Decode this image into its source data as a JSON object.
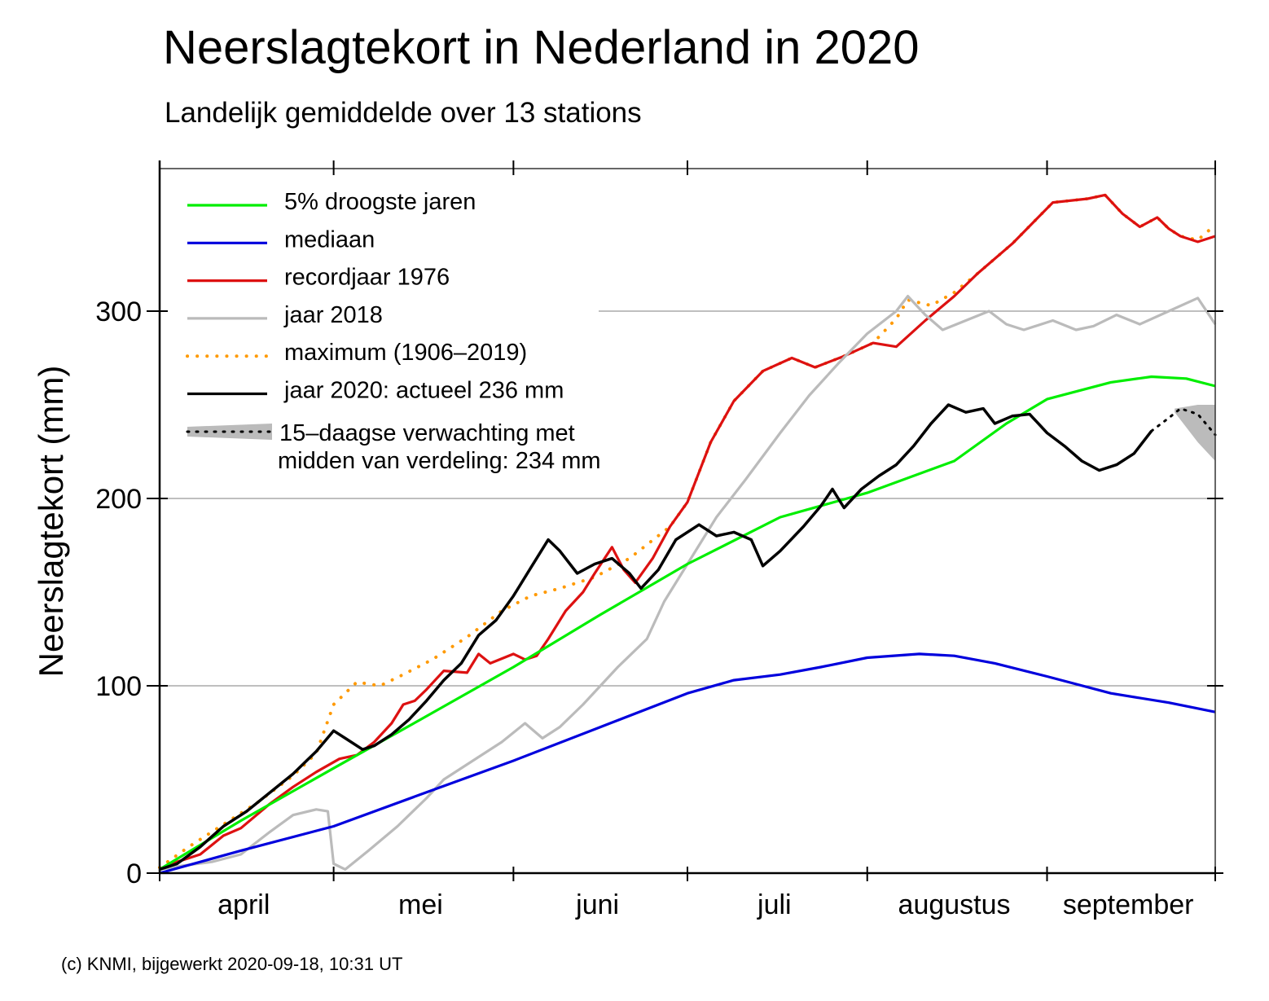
{
  "title": "Neerslagtekort in Nederland in 2020",
  "subtitle": "Landelijk gemiddelde over 13 stations",
  "credit": "(c) KNMI, bijgewerkt 2020-09-18, 10:31 UT",
  "chart_data": {
    "type": "line",
    "title": "Neerslagtekort in Nederland in 2020",
    "subtitle": "Landelijk gemiddelde over 13 stations",
    "ylabel": "Neerslagtekort (mm)",
    "xlabel": "",
    "x_unit": "day of year (1 = 1 April)",
    "xlim": [
      1,
      183
    ],
    "ylim": [
      0,
      380
    ],
    "yticks": [
      0,
      100,
      200,
      300
    ],
    "ytick_labels": [
      "0",
      "100",
      "200",
      "300"
    ],
    "month_ticks": [
      1,
      31,
      62,
      92,
      123,
      154,
      183
    ],
    "month_labels": [
      {
        "label": "april",
        "center": 15.5
      },
      {
        "label": "mei",
        "center": 46
      },
      {
        "label": "juni",
        "center": 76.5
      },
      {
        "label": "juli",
        "center": 107
      },
      {
        "label": "augustus",
        "center": 138
      },
      {
        "label": "september",
        "center": 168
      }
    ],
    "grid": "horizontal",
    "legend_position": "top-left",
    "series": [
      {
        "key": "dry5",
        "name": "5% droogste jaren",
        "color": "#00ee00",
        "style": "solid",
        "points": [
          [
            1,
            2
          ],
          [
            15,
            28
          ],
          [
            31,
            56
          ],
          [
            46,
            82
          ],
          [
            62,
            110
          ],
          [
            77,
            138
          ],
          [
            92,
            165
          ],
          [
            108,
            190
          ],
          [
            123,
            203
          ],
          [
            138,
            220
          ],
          [
            147,
            240
          ],
          [
            154,
            253
          ],
          [
            165,
            262
          ],
          [
            172,
            265
          ],
          [
            178,
            264
          ],
          [
            183,
            260
          ]
        ]
      },
      {
        "key": "median",
        "name": "mediaan",
        "color": "#0000dd",
        "style": "solid",
        "points": [
          [
            1,
            0
          ],
          [
            15,
            12
          ],
          [
            31,
            25
          ],
          [
            46,
            42
          ],
          [
            62,
            60
          ],
          [
            77,
            78
          ],
          [
            92,
            96
          ],
          [
            100,
            103
          ],
          [
            108,
            106
          ],
          [
            115,
            110
          ],
          [
            123,
            115
          ],
          [
            132,
            117
          ],
          [
            138,
            116
          ],
          [
            145,
            112
          ],
          [
            154,
            105
          ],
          [
            165,
            96
          ],
          [
            175,
            91
          ],
          [
            183,
            86
          ]
        ]
      },
      {
        "key": "rec1976",
        "name": "recordjaar 1976",
        "color": "#dd1111",
        "style": "solid",
        "points": [
          [
            1,
            2
          ],
          [
            4,
            6
          ],
          [
            8,
            10
          ],
          [
            12,
            20
          ],
          [
            15,
            24
          ],
          [
            20,
            37
          ],
          [
            24,
            46
          ],
          [
            28,
            54
          ],
          [
            32,
            61
          ],
          [
            35,
            63
          ],
          [
            38,
            70
          ],
          [
            41,
            80
          ],
          [
            43,
            90
          ],
          [
            45,
            92
          ],
          [
            47,
            98
          ],
          [
            50,
            108
          ],
          [
            54,
            107
          ],
          [
            56,
            117
          ],
          [
            58,
            112
          ],
          [
            62,
            117
          ],
          [
            64,
            114
          ],
          [
            66,
            116
          ],
          [
            68,
            125
          ],
          [
            71,
            140
          ],
          [
            74,
            150
          ],
          [
            76,
            160
          ],
          [
            79,
            174
          ],
          [
            81,
            162
          ],
          [
            83,
            155
          ],
          [
            86,
            168
          ],
          [
            89,
            185
          ],
          [
            92,
            198
          ],
          [
            96,
            230
          ],
          [
            100,
            252
          ],
          [
            105,
            268
          ],
          [
            110,
            275
          ],
          [
            114,
            270
          ],
          [
            119,
            276
          ],
          [
            124,
            283
          ],
          [
            128,
            281
          ],
          [
            133,
            295
          ],
          [
            138,
            308
          ],
          [
            142,
            320
          ],
          [
            148,
            336
          ],
          [
            155,
            358
          ],
          [
            161,
            360
          ],
          [
            164,
            362
          ],
          [
            167,
            352
          ],
          [
            170,
            345
          ],
          [
            173,
            350
          ],
          [
            175,
            344
          ],
          [
            177,
            340
          ],
          [
            180,
            337
          ],
          [
            183,
            340
          ]
        ]
      },
      {
        "key": "y2018",
        "name": "jaar 2018",
        "color": "#bbbbbb",
        "style": "solid",
        "points": [
          [
            1,
            2
          ],
          [
            5,
            4
          ],
          [
            10,
            6
          ],
          [
            15,
            10
          ],
          [
            20,
            22
          ],
          [
            24,
            31
          ],
          [
            28,
            34
          ],
          [
            30,
            33
          ],
          [
            31,
            5
          ],
          [
            33,
            2
          ],
          [
            37,
            12
          ],
          [
            42,
            25
          ],
          [
            47,
            40
          ],
          [
            50,
            50
          ],
          [
            55,
            60
          ],
          [
            60,
            70
          ],
          [
            64,
            80
          ],
          [
            67,
            72
          ],
          [
            70,
            78
          ],
          [
            74,
            90
          ],
          [
            80,
            110
          ],
          [
            85,
            125
          ],
          [
            88,
            145
          ],
          [
            92,
            165
          ],
          [
            97,
            190
          ],
          [
            102,
            210
          ],
          [
            108,
            235
          ],
          [
            113,
            255
          ],
          [
            118,
            272
          ],
          [
            123,
            288
          ],
          [
            128,
            300
          ],
          [
            130,
            308
          ],
          [
            133,
            298
          ],
          [
            136,
            290
          ],
          [
            140,
            295
          ],
          [
            144,
            300
          ],
          [
            147,
            293
          ],
          [
            150,
            290
          ],
          [
            155,
            295
          ],
          [
            159,
            290
          ],
          [
            162,
            292
          ],
          [
            166,
            298
          ],
          [
            170,
            293
          ],
          [
            175,
            300
          ],
          [
            180,
            307
          ],
          [
            183,
            293
          ]
        ]
      },
      {
        "key": "max",
        "name": "maximum (1906–2019)",
        "color": "#ff9900",
        "style": "dotted",
        "points": [
          [
            1,
            3
          ],
          [
            6,
            14
          ],
          [
            12,
            26
          ],
          [
            18,
            38
          ],
          [
            24,
            52
          ],
          [
            28,
            64
          ],
          [
            31,
            90
          ],
          [
            35,
            102
          ],
          [
            39,
            100
          ],
          [
            43,
            106
          ],
          [
            48,
            114
          ],
          [
            54,
            126
          ],
          [
            60,
            140
          ],
          [
            65,
            148
          ],
          [
            70,
            152
          ],
          [
            76,
            158
          ],
          [
            82,
            168
          ],
          [
            89,
            185
          ],
          [
            92,
            198
          ],
          [
            96,
            230
          ],
          [
            100,
            252
          ],
          [
            105,
            268
          ],
          [
            110,
            275
          ],
          [
            114,
            270
          ],
          [
            119,
            276
          ],
          [
            124,
            283
          ],
          [
            128,
            296
          ],
          [
            130,
            306
          ],
          [
            134,
            303
          ],
          [
            138,
            310
          ],
          [
            142,
            320
          ],
          [
            148,
            336
          ],
          [
            155,
            358
          ],
          [
            161,
            360
          ],
          [
            164,
            362
          ],
          [
            167,
            352
          ],
          [
            170,
            345
          ],
          [
            173,
            350
          ],
          [
            175,
            344
          ],
          [
            177,
            340
          ],
          [
            180,
            338
          ],
          [
            183,
            346
          ]
        ]
      },
      {
        "key": "y2020",
        "name": "jaar 2020: actueel 236 mm",
        "color": "#000000",
        "style": "solid",
        "points": [
          [
            1,
            2
          ],
          [
            4,
            5
          ],
          [
            8,
            14
          ],
          [
            12,
            25
          ],
          [
            16,
            33
          ],
          [
            20,
            43
          ],
          [
            24,
            53
          ],
          [
            28,
            65
          ],
          [
            31,
            76
          ],
          [
            33,
            72
          ],
          [
            36,
            66
          ],
          [
            38,
            68
          ],
          [
            41,
            74
          ],
          [
            44,
            82
          ],
          [
            47,
            92
          ],
          [
            50,
            103
          ],
          [
            53,
            112
          ],
          [
            56,
            127
          ],
          [
            59,
            135
          ],
          [
            62,
            148
          ],
          [
            65,
            163
          ],
          [
            68,
            178
          ],
          [
            70,
            172
          ],
          [
            73,
            160
          ],
          [
            76,
            165
          ],
          [
            79,
            168
          ],
          [
            82,
            160
          ],
          [
            84,
            152
          ],
          [
            87,
            162
          ],
          [
            90,
            178
          ],
          [
            94,
            186
          ],
          [
            97,
            180
          ],
          [
            100,
            182
          ],
          [
            103,
            178
          ],
          [
            105,
            164
          ],
          [
            108,
            172
          ],
          [
            112,
            185
          ],
          [
            115,
            196
          ],
          [
            117,
            205
          ],
          [
            119,
            195
          ],
          [
            122,
            205
          ],
          [
            125,
            212
          ],
          [
            128,
            218
          ],
          [
            131,
            228
          ],
          [
            134,
            240
          ],
          [
            137,
            250
          ],
          [
            140,
            246
          ],
          [
            143,
            248
          ],
          [
            145,
            240
          ],
          [
            148,
            244
          ],
          [
            151,
            245
          ],
          [
            154,
            235
          ],
          [
            157,
            228
          ],
          [
            160,
            220
          ],
          [
            163,
            215
          ],
          [
            166,
            218
          ],
          [
            169,
            224
          ],
          [
            172,
            236
          ]
        ]
      },
      {
        "key": "forecast",
        "name": "15–daagse verwachting met midden van verdeling: 234 mm",
        "color": "#000000",
        "style": "forecast",
        "points": [
          [
            172,
            236
          ],
          [
            175,
            243
          ],
          [
            177,
            248
          ],
          [
            180,
            245
          ],
          [
            183,
            234
          ]
        ],
        "band_upper": [
          [
            176,
            248
          ],
          [
            180,
            250
          ],
          [
            183,
            250
          ]
        ],
        "band_lower": [
          [
            176,
            246
          ],
          [
            180,
            230
          ],
          [
            183,
            220
          ]
        ]
      }
    ],
    "legend": [
      {
        "label": "5% droogste jaren",
        "color": "#00ee00",
        "style": "solid"
      },
      {
        "label": "mediaan",
        "color": "#0000dd",
        "style": "solid"
      },
      {
        "label": "recordjaar 1976",
        "color": "#dd1111",
        "style": "solid"
      },
      {
        "label": "jaar 2018",
        "color": "#bbbbbb",
        "style": "solid"
      },
      {
        "label": "maximum (1906–2019)",
        "color": "#ff9900",
        "style": "dotted"
      },
      {
        "label": "jaar 2020: actueel 236 mm",
        "color": "#000000",
        "style": "solid"
      },
      {
        "label": "15–daagse verwachting met",
        "label2": "midden van verdeling: 234 mm",
        "color": "#bbbbbb",
        "style": "band"
      }
    ]
  }
}
